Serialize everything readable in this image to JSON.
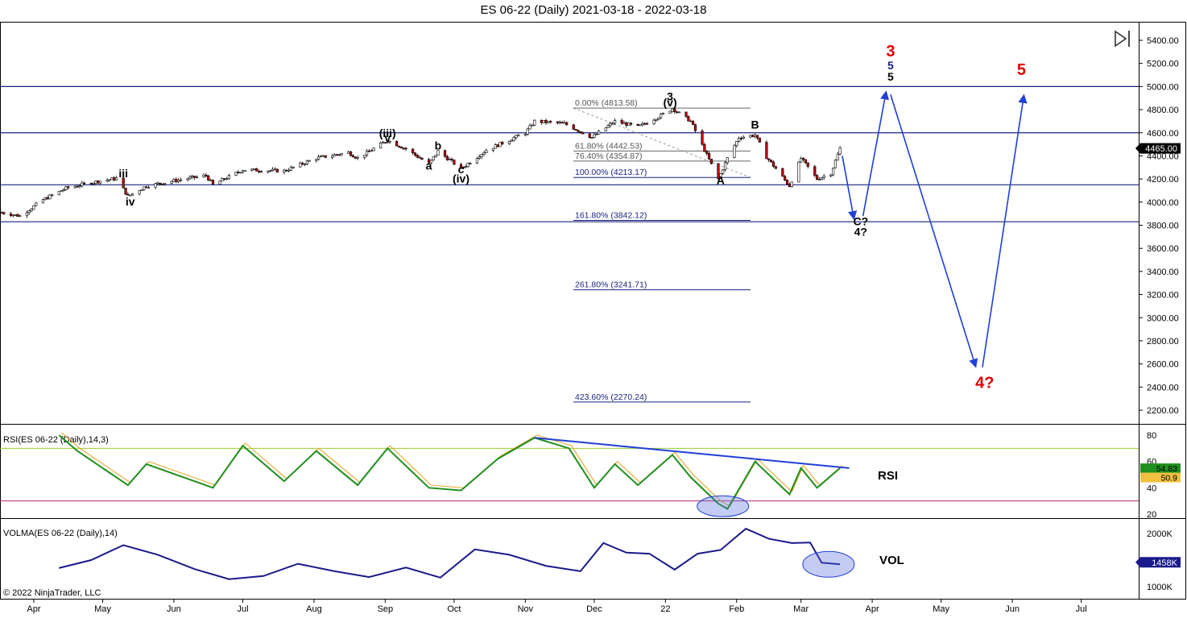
{
  "title": "ES 06-22 (Daily)  2021-03-18 - 2022-03-18",
  "copyright": "© 2022 NinjaTrader, LLC",
  "playback_icon": "play-step-icon",
  "colors": {
    "candle_up": "#ffffff",
    "candle_down": "#c00000",
    "wave_black": "#000000",
    "wave_red": "#e00000",
    "wave_blue": "#1a237e",
    "arrow_blue": "#1f3fd6",
    "rsi_line": "#1f8f1f",
    "rsi_signal": "#e0a020",
    "vol_line": "#1a1a8c",
    "overbought": "#9acd32",
    "oversold": "#b0307a",
    "fib": "#1a237e"
  },
  "x_axis_months": [
    "Apr",
    "May",
    "Jun",
    "Jul",
    "Aug",
    "Sep",
    "Oct",
    "Nov",
    "Dec",
    "22",
    "Feb",
    "Mar",
    "Apr",
    "May",
    "Jun",
    "Jul"
  ],
  "price_axis": {
    "ticks": [
      "5400.00",
      "5200.00",
      "5000.00",
      "4800.00",
      "4600.00",
      "4400.00",
      "4200.00",
      "4000.00",
      "3800.00",
      "3600.00",
      "3400.00",
      "3200.00",
      "3000.00",
      "2800.00",
      "2600.00",
      "2400.00",
      "2200.00"
    ],
    "current": "4465.00",
    "min": 2100,
    "max": 5500
  },
  "horizontal_levels": [
    5000,
    4600,
    4150,
    3830
  ],
  "fib_levels": [
    {
      "label": "0.00% (4813.58)",
      "price": 4813.58
    },
    {
      "label": "61.80% (4442.53)",
      "price": 4442.53
    },
    {
      "label": "76.40% (4354.87)",
      "price": 4354.87
    },
    {
      "label": "100.00% (4213.17)",
      "price": 4213.17
    },
    {
      "label": "161.80% (3842.12)",
      "price": 3842.12
    },
    {
      "label": "261.80% (3241.71)",
      "price": 3241.71
    },
    {
      "label": "423.60% (2270.24)",
      "price": 2270.24
    }
  ],
  "wave_labels_black": [
    {
      "text": "iii",
      "date": "2021-05-10",
      "price": 4215
    },
    {
      "text": "iv",
      "date": "2021-05-13",
      "price": 3970
    },
    {
      "text": "(iii)",
      "date": "2021-09-02",
      "price": 4565
    },
    {
      "text": "v",
      "date": "2021-09-02",
      "price": 4520
    },
    {
      "text": "b",
      "date": "2021-09-24",
      "price": 4455
    },
    {
      "text": "a",
      "date": "2021-09-20",
      "price": 4280
    },
    {
      "text": "c",
      "date": "2021-10-04",
      "price": 4250
    },
    {
      "text": "(iv)",
      "date": "2021-10-04",
      "price": 4170
    },
    {
      "text": "3",
      "date": "2022-01-03",
      "price": 4880
    },
    {
      "text": "(v)",
      "date": "2022-01-03",
      "price": 4830
    },
    {
      "text": "B",
      "date": "2022-02-09",
      "price": 4635
    },
    {
      "text": "A",
      "date": "2022-01-25",
      "price": 4155
    },
    {
      "text": "C?",
      "date": "2022-03-27",
      "price": 3800
    },
    {
      "text": "4?",
      "date": "2022-03-27",
      "price": 3710
    },
    {
      "text": "5",
      "date": "2022-04-09",
      "price": 5050
    }
  ],
  "wave_labels_red": [
    {
      "text": "3",
      "date": "2022-04-09",
      "price": 5260
    },
    {
      "text": "5",
      "date": "2022-06-05",
      "price": 5100
    },
    {
      "text": "4?",
      "date": "2022-05-20",
      "price": 2390
    }
  ],
  "wave_labels_blue": [
    {
      "text": "5",
      "date": "2022-04-09",
      "price": 5150
    }
  ],
  "rsi_panel": {
    "label": "RSI(ES 06-22 (Daily),14,3)",
    "name": "RSI",
    "ticks": [
      "80",
      "60",
      "40",
      "20"
    ],
    "current": "54.83",
    "signal": "50.9",
    "overbought": 70,
    "oversold": 30
  },
  "vol_panel": {
    "label": "VOLMA(ES 06-22 (Daily),14)",
    "name": "VOL",
    "ticks": [
      "2000K",
      "1000K"
    ],
    "current": "1458K"
  },
  "chart_data": {
    "type": "line",
    "title": "ES 06-22 (Daily)  2021-03-18 - 2022-03-18",
    "xlabel": "",
    "ylabel": "",
    "ylim": [
      2100,
      5500
    ],
    "series": [
      {
        "name": "",
        "x": [
          "2021-03-18",
          "2021-03-26",
          "2021-04-05",
          "2021-04-15",
          "2021-04-26",
          "2021-05-07",
          "2021-05-12",
          "2021-05-20",
          "2021-06-01",
          "2021-06-15",
          "2021-06-18",
          "2021-07-01",
          "2021-07-19",
          "2021-08-02",
          "2021-08-16",
          "2021-08-20",
          "2021-09-02",
          "2021-09-10",
          "2021-09-20",
          "2021-09-24",
          "2021-10-04",
          "2021-10-15",
          "2021-11-01",
          "2021-11-05",
          "2021-11-18",
          "2021-11-30",
          "2021-12-10",
          "2021-12-20",
          "2021-12-31",
          "2022-01-04",
          "2022-01-12",
          "2022-01-24",
          "2022-01-28",
          "2022-02-02",
          "2022-02-09",
          "2022-02-14",
          "2022-02-24",
          "2022-03-01",
          "2022-03-08",
          "2022-03-14",
          "2022-03-18"
        ],
        "y": [
          3910,
          3880,
          4020,
          4120,
          4170,
          4205,
          4050,
          4140,
          4185,
          4230,
          4150,
          4280,
          4270,
          4380,
          4430,
          4380,
          4535,
          4460,
          4330,
          4440,
          4290,
          4450,
          4600,
          4700,
          4680,
          4560,
          4700,
          4650,
          4760,
          4810,
          4700,
          4200,
          4380,
          4560,
          4580,
          4390,
          4140,
          4380,
          4200,
          4250,
          4465
        ]
      }
    ],
    "rsi": {
      "x": [
        "2021-04-12",
        "2021-04-20",
        "2021-05-12",
        "2021-05-20",
        "2021-06-18",
        "2021-07-01",
        "2021-07-19",
        "2021-08-02",
        "2021-08-20",
        "2021-09-02",
        "2021-09-20",
        "2021-10-04",
        "2021-10-20",
        "2021-11-05",
        "2021-11-20",
        "2021-12-01",
        "2021-12-10",
        "2021-12-20",
        "2022-01-04",
        "2022-01-12",
        "2022-01-24",
        "2022-01-28",
        "2022-02-09",
        "2022-02-24",
        "2022-03-01",
        "2022-03-08",
        "2022-03-18"
      ],
      "y": [
        80,
        68,
        42,
        58,
        40,
        72,
        45,
        68,
        42,
        70,
        40,
        38,
        62,
        78,
        70,
        40,
        58,
        42,
        65,
        48,
        28,
        24,
        60,
        35,
        55,
        40,
        55
      ]
    },
    "volma": {
      "x": [
        "2021-04-12",
        "2021-04-26",
        "2021-05-10",
        "2021-05-25",
        "2021-06-10",
        "2021-06-25",
        "2021-07-10",
        "2021-07-25",
        "2021-08-10",
        "2021-08-25",
        "2021-09-10",
        "2021-09-25",
        "2021-10-10",
        "2021-10-25",
        "2021-11-10",
        "2021-11-25",
        "2021-12-05",
        "2021-12-15",
        "2021-12-25",
        "2022-01-05",
        "2022-01-15",
        "2022-01-25",
        "2022-02-05",
        "2022-02-15",
        "2022-02-25",
        "2022-03-05",
        "2022-03-10",
        "2022-03-18"
      ],
      "y": [
        1350,
        1500,
        1780,
        1600,
        1330,
        1140,
        1200,
        1430,
        1290,
        1180,
        1360,
        1170,
        1700,
        1600,
        1390,
        1290,
        1820,
        1640,
        1620,
        1320,
        1620,
        1690,
        2090,
        1900,
        1820,
        1830,
        1450,
        1420
      ]
    }
  }
}
